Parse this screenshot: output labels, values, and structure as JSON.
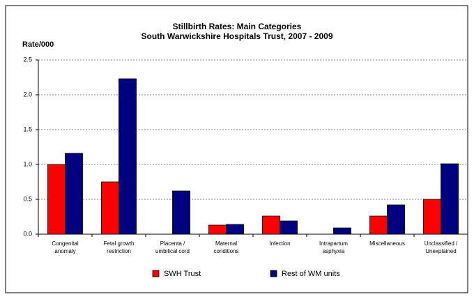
{
  "chart_data": {
    "type": "bar",
    "title": "Stillbirth Rates: Main Categories",
    "subtitle": "South Warwickshire Hospitals Trust, 2007 - 2009",
    "y_label": "Rate/000",
    "categories": [
      [
        "Congenital",
        "anomaly"
      ],
      [
        "Fetal growth",
        "restriction"
      ],
      [
        "Placenta /",
        "umbilical cord"
      ],
      [
        "Maternal",
        "conditions"
      ],
      [
        "Infection"
      ],
      [
        "Intrapartum",
        "asphyxia"
      ],
      [
        "Miscellaneous"
      ],
      [
        "Unclassified /",
        "Unexplained"
      ]
    ],
    "series": [
      {
        "name": "SWH Trust",
        "color": "#ff0000",
        "values": [
          1.0,
          0.75,
          0,
          0.13,
          0.26,
          0,
          0.26,
          0.5
        ]
      },
      {
        "name": "Rest of WM units",
        "color": "#000080",
        "values": [
          1.16,
          2.23,
          0.62,
          0.14,
          0.19,
          0.09,
          0.42,
          1.01
        ]
      }
    ],
    "ylim": [
      0,
      2.5
    ],
    "yticks": [
      {
        "value": 0,
        "label": "0.0"
      },
      0.5,
      {
        "value": 1,
        "label": "1.0"
      },
      1.5,
      {
        "value": 2,
        "label": "2.0"
      },
      2.5
    ],
    "grid": true
  }
}
